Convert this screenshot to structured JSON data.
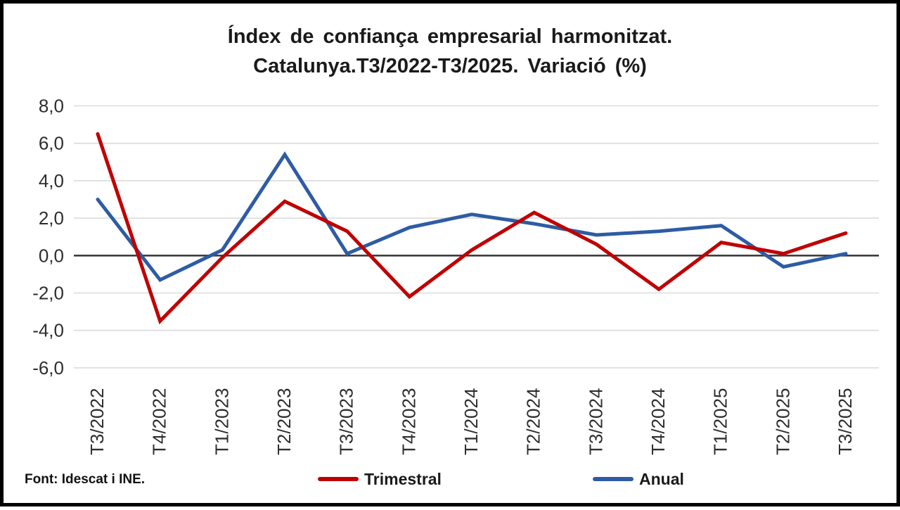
{
  "title": {
    "line1": "Índex de confiança empresarial harmonitzat.",
    "line2": "Catalunya.T3/2022-T3/2025. Variació (%)"
  },
  "footer": {
    "source": "Font: Idescat i INE."
  },
  "legend": [
    {
      "label": "Trimestral",
      "color": "#C00000"
    },
    {
      "label": "Anual",
      "color": "#2E5CA4"
    }
  ],
  "colors": {
    "grid": "#DBDBDB",
    "zero_line": "#3D3D3D",
    "tick_text": "#2e2e2e",
    "trimestral_red": "#C00000",
    "anual_blue": "#2E5CA4"
  },
  "chart_data": {
    "type": "line",
    "title": "Índex de confiança empresarial harmonitzat. Catalunya.T3/2022-T3/2025. Variació (%)",
    "xlabel": "",
    "ylabel": "Variació (%)",
    "categories": [
      "T3/2022",
      "T4/2022",
      "T1/2023",
      "T2/2023",
      "T3/2023",
      "T4/2023",
      "T1/2024",
      "T2/2024",
      "T3/2024",
      "T4/2024",
      "T1/2025",
      "T2/2025",
      "T3/2025"
    ],
    "series": [
      {
        "name": "Trimestral",
        "color": "#C00000",
        "values": [
          6.5,
          -3.5,
          -0.1,
          2.9,
          1.3,
          -2.2,
          0.3,
          2.3,
          0.6,
          -1.8,
          0.7,
          0.1,
          1.2
        ]
      },
      {
        "name": "Anual",
        "color": "#2E5CA4",
        "values": [
          3.0,
          -1.3,
          0.3,
          5.4,
          0.1,
          1.5,
          2.2,
          1.7,
          1.1,
          1.3,
          1.6,
          -0.6,
          0.1
        ]
      }
    ],
    "yticks": [
      {
        "value": 8,
        "label": "8,0"
      },
      {
        "value": 6,
        "label": "6,0"
      },
      {
        "value": 4,
        "label": "4,0"
      },
      {
        "value": 2,
        "label": "2,0"
      },
      {
        "value": 0,
        "label": "0,0"
      },
      {
        "value": -2,
        "label": "-2,0"
      },
      {
        "value": -4,
        "label": "-4,0"
      },
      {
        "value": -6,
        "label": "-6,0"
      }
    ],
    "ylim": [
      -6,
      8
    ],
    "grid": true,
    "zero_line": true,
    "legend_position": "bottom"
  }
}
